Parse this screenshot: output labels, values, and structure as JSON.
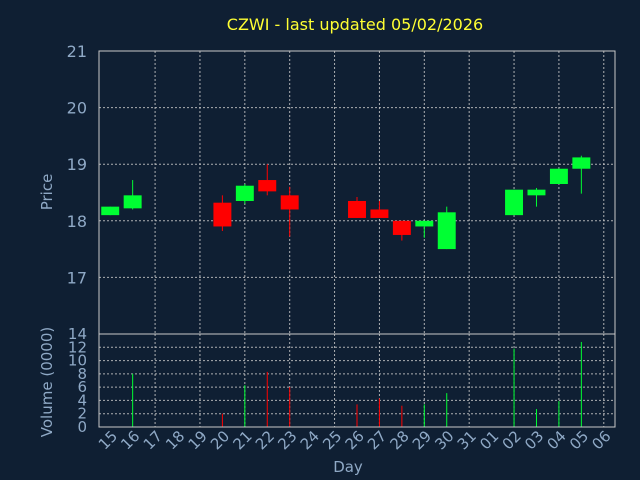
{
  "title": "CZWI - last updated 05/02/2026",
  "colors": {
    "background": "#0f1f33",
    "grid": "#c9c9c9",
    "frame": "#c9c9c9",
    "up": "#00ff33",
    "down": "#ff0000",
    "text": "#8fa9c6",
    "title": "#ffff33"
  },
  "chart_data": [
    {
      "type": "candlestick",
      "ylabel": "Price",
      "ylim": [
        16.0,
        21.0
      ],
      "yticks": [
        17,
        18,
        19,
        20,
        21
      ],
      "grid": true,
      "days": [
        "15",
        "16",
        "17",
        "18",
        "19",
        "20",
        "21",
        "22",
        "23",
        "24",
        "25",
        "26",
        "27",
        "28",
        "29",
        "30",
        "31",
        "01",
        "02",
        "03",
        "04",
        "05",
        "06"
      ],
      "candles": [
        {
          "day": "15",
          "open": 18.1,
          "high": 18.25,
          "low": 18.1,
          "close": 18.25
        },
        {
          "day": "16",
          "open": 18.22,
          "high": 18.72,
          "low": 18.2,
          "close": 18.45
        },
        {
          "day": "20",
          "open": 18.32,
          "high": 18.45,
          "low": 17.82,
          "close": 17.9
        },
        {
          "day": "21",
          "open": 18.35,
          "high": 18.65,
          "low": 18.3,
          "close": 18.62
        },
        {
          "day": "22",
          "open": 18.72,
          "high": 19.0,
          "low": 18.45,
          "close": 18.52
        },
        {
          "day": "23",
          "open": 18.45,
          "high": 18.6,
          "low": 17.72,
          "close": 18.2
        },
        {
          "day": "26",
          "open": 18.35,
          "high": 18.42,
          "low": 18.05,
          "close": 18.05
        },
        {
          "day": "27",
          "open": 18.2,
          "high": 18.35,
          "low": 18.05,
          "close": 18.05
        },
        {
          "day": "28",
          "open": 18.0,
          "high": 18.0,
          "low": 17.65,
          "close": 17.75
        },
        {
          "day": "29",
          "open": 17.9,
          "high": 18.0,
          "low": 17.7,
          "close": 18.0
        },
        {
          "day": "30",
          "open": 17.5,
          "high": 18.25,
          "low": 17.5,
          "close": 18.15
        },
        {
          "day": "02",
          "open": 18.1,
          "high": 18.55,
          "low": 18.1,
          "close": 18.55
        },
        {
          "day": "03",
          "open": 18.45,
          "high": 18.58,
          "low": 18.25,
          "close": 18.55
        },
        {
          "day": "04",
          "open": 18.65,
          "high": 18.92,
          "low": 18.65,
          "close": 18.92
        },
        {
          "day": "05",
          "open": 18.92,
          "high": 19.15,
          "low": 18.48,
          "close": 19.12
        }
      ]
    },
    {
      "type": "bar",
      "ylabel": "Volume (0000)",
      "xlabel": "Day",
      "ylim": [
        0,
        14
      ],
      "yticks": [
        0,
        2,
        4,
        6,
        8,
        10,
        12,
        14
      ],
      "grid": true,
      "bars": [
        {
          "day": "16",
          "value": 8.0,
          "direction": "up"
        },
        {
          "day": "20",
          "value": 2.0,
          "direction": "down"
        },
        {
          "day": "21",
          "value": 6.3,
          "direction": "up"
        },
        {
          "day": "22",
          "value": 8.3,
          "direction": "down"
        },
        {
          "day": "23",
          "value": 6.0,
          "direction": "down"
        },
        {
          "day": "26",
          "value": 3.4,
          "direction": "down"
        },
        {
          "day": "27",
          "value": 4.3,
          "direction": "down"
        },
        {
          "day": "28",
          "value": 3.2,
          "direction": "down"
        },
        {
          "day": "29",
          "value": 3.4,
          "direction": "up"
        },
        {
          "day": "30",
          "value": 5.1,
          "direction": "up"
        },
        {
          "day": "02",
          "value": 11.8,
          "direction": "up"
        },
        {
          "day": "03",
          "value": 2.7,
          "direction": "up"
        },
        {
          "day": "04",
          "value": 3.9,
          "direction": "up"
        },
        {
          "day": "05",
          "value": 12.8,
          "direction": "up"
        }
      ]
    }
  ]
}
